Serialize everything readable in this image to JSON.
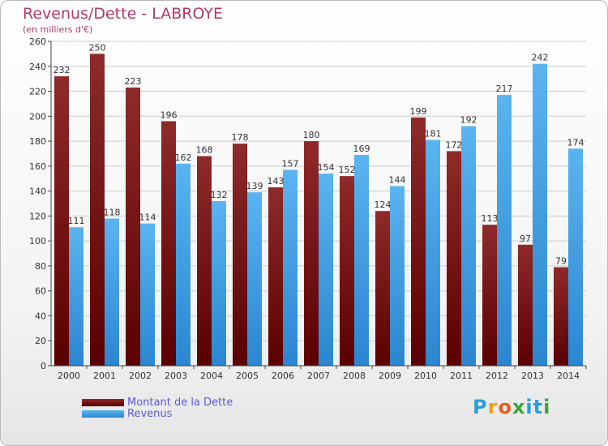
{
  "title": "Revenus/Dette - LABROYE",
  "subtitle": "(en milliers d'€)",
  "colors": {
    "debt": "#8b1a1a",
    "revenue": "#3a9ee8",
    "axis": "#444444",
    "grid": "#cccccc"
  },
  "legend": [
    {
      "label": "Montant de la Dette",
      "series": "debt"
    },
    {
      "label": "Revenus",
      "series": "revenue"
    }
  ],
  "logo": {
    "text": "Proxiti",
    "letters": [
      "P",
      "r",
      "o",
      "x",
      "i",
      "t",
      "i"
    ],
    "colors": [
      "#2a9fd6",
      "#e9a11a",
      "#e85d1c",
      "#3aa63a",
      "#2a9fd6",
      "#2a9fd6",
      "#3aa63a"
    ]
  },
  "chart_data": {
    "type": "bar",
    "categories": [
      "2000",
      "2001",
      "2002",
      "2003",
      "2004",
      "2005",
      "2006",
      "2007",
      "2008",
      "2009",
      "2010",
      "2011",
      "2012",
      "2013",
      "2014"
    ],
    "series": [
      {
        "name": "Montant de la Dette",
        "values": [
          232,
          250,
          223,
          196,
          168,
          178,
          143,
          180,
          152,
          124,
          199,
          172,
          113,
          97,
          79
        ]
      },
      {
        "name": "Revenus",
        "values": [
          111,
          118,
          114,
          162,
          132,
          139,
          157,
          154,
          169,
          144,
          181,
          192,
          217,
          242,
          174
        ]
      }
    ],
    "ylim": [
      0,
      260
    ],
    "yticks": [
      0,
      20,
      40,
      60,
      80,
      100,
      120,
      140,
      160,
      180,
      200,
      220,
      240,
      260
    ],
    "grid": true,
    "legend_position": "bottom-left"
  }
}
